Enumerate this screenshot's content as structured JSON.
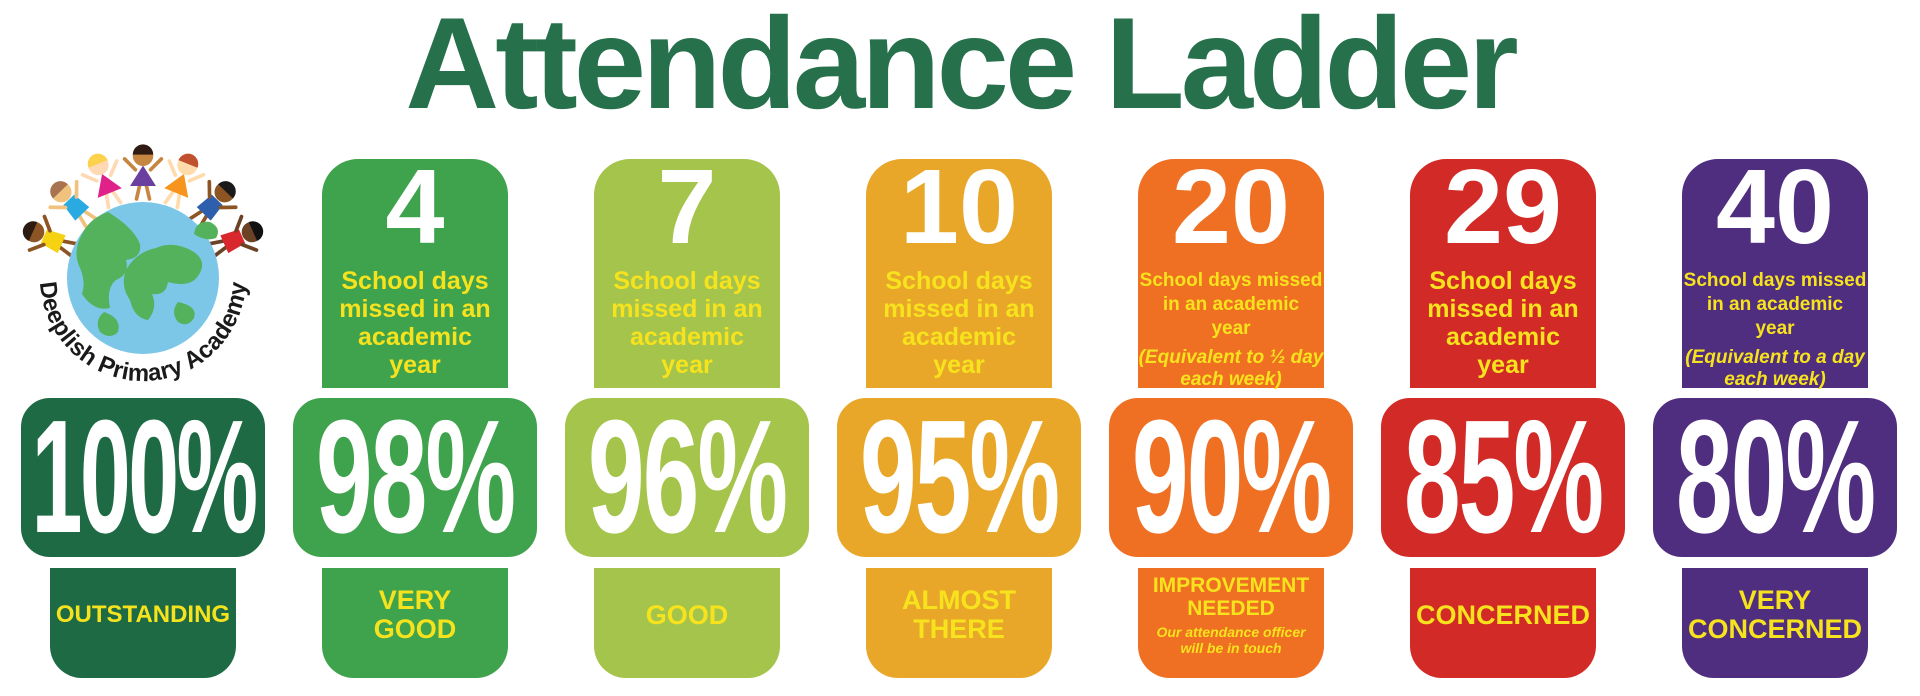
{
  "title": "Attendance Ladder",
  "colors": {
    "title": "#26704c",
    "text_yellow": "#f7e31d",
    "text_white": "#ffffff"
  },
  "logo": {
    "school_name": "Deeplish Primary Academy",
    "globe_ocean": "#7cc7e8",
    "globe_land": "#55b25c"
  },
  "columns": [
    {
      "id": "outstanding",
      "color": "#1d6a45",
      "percent": "100%",
      "condensed": true,
      "label_lines": [
        "OUTSTANDING"
      ],
      "label_size": 24
    },
    {
      "id": "very-good",
      "color": "#3fa24c",
      "percent": "98%",
      "days": "4",
      "desc_lines": [
        "School days",
        "missed in an",
        "academic",
        "year"
      ],
      "label_lines": [
        "VERY",
        "GOOD"
      ]
    },
    {
      "id": "good",
      "color": "#a4c44b",
      "percent": "96%",
      "days": "7",
      "desc_lines": [
        "School days",
        "missed in an",
        "academic",
        "year"
      ],
      "label_lines": [
        "GOOD"
      ]
    },
    {
      "id": "almost-there",
      "color": "#e9a72a",
      "percent": "95%",
      "days": "10",
      "desc_lines": [
        "School days",
        "missed in an",
        "academic",
        "year"
      ],
      "label_lines": [
        "ALMOST",
        "THERE"
      ]
    },
    {
      "id": "improvement-needed",
      "color": "#ef7023",
      "percent": "90%",
      "days": "20",
      "desc_lines": [
        "School days missed",
        "in an academic",
        "year"
      ],
      "note_lines": [
        "(Equivalent to ½ day",
        "each week)"
      ],
      "label_lines": [
        "IMPROVEMENT",
        "NEEDED"
      ],
      "label_size": 21,
      "label_note_lines": [
        "Our attendance officer",
        "will be in touch"
      ]
    },
    {
      "id": "concerned",
      "color": "#d22b27",
      "percent": "85%",
      "days": "29",
      "desc_lines": [
        "School days",
        "missed in an",
        "academic",
        "year"
      ],
      "label_lines": [
        "CONCERNED"
      ]
    },
    {
      "id": "very-concerned",
      "color": "#4f2d7f",
      "percent": "80%",
      "days": "40",
      "desc_lines": [
        "School days missed",
        "in an academic",
        "year"
      ],
      "note_lines": [
        "(Equivalent to a day",
        "each week)"
      ],
      "label_lines": [
        "VERY",
        "CONCERNED"
      ]
    }
  ]
}
